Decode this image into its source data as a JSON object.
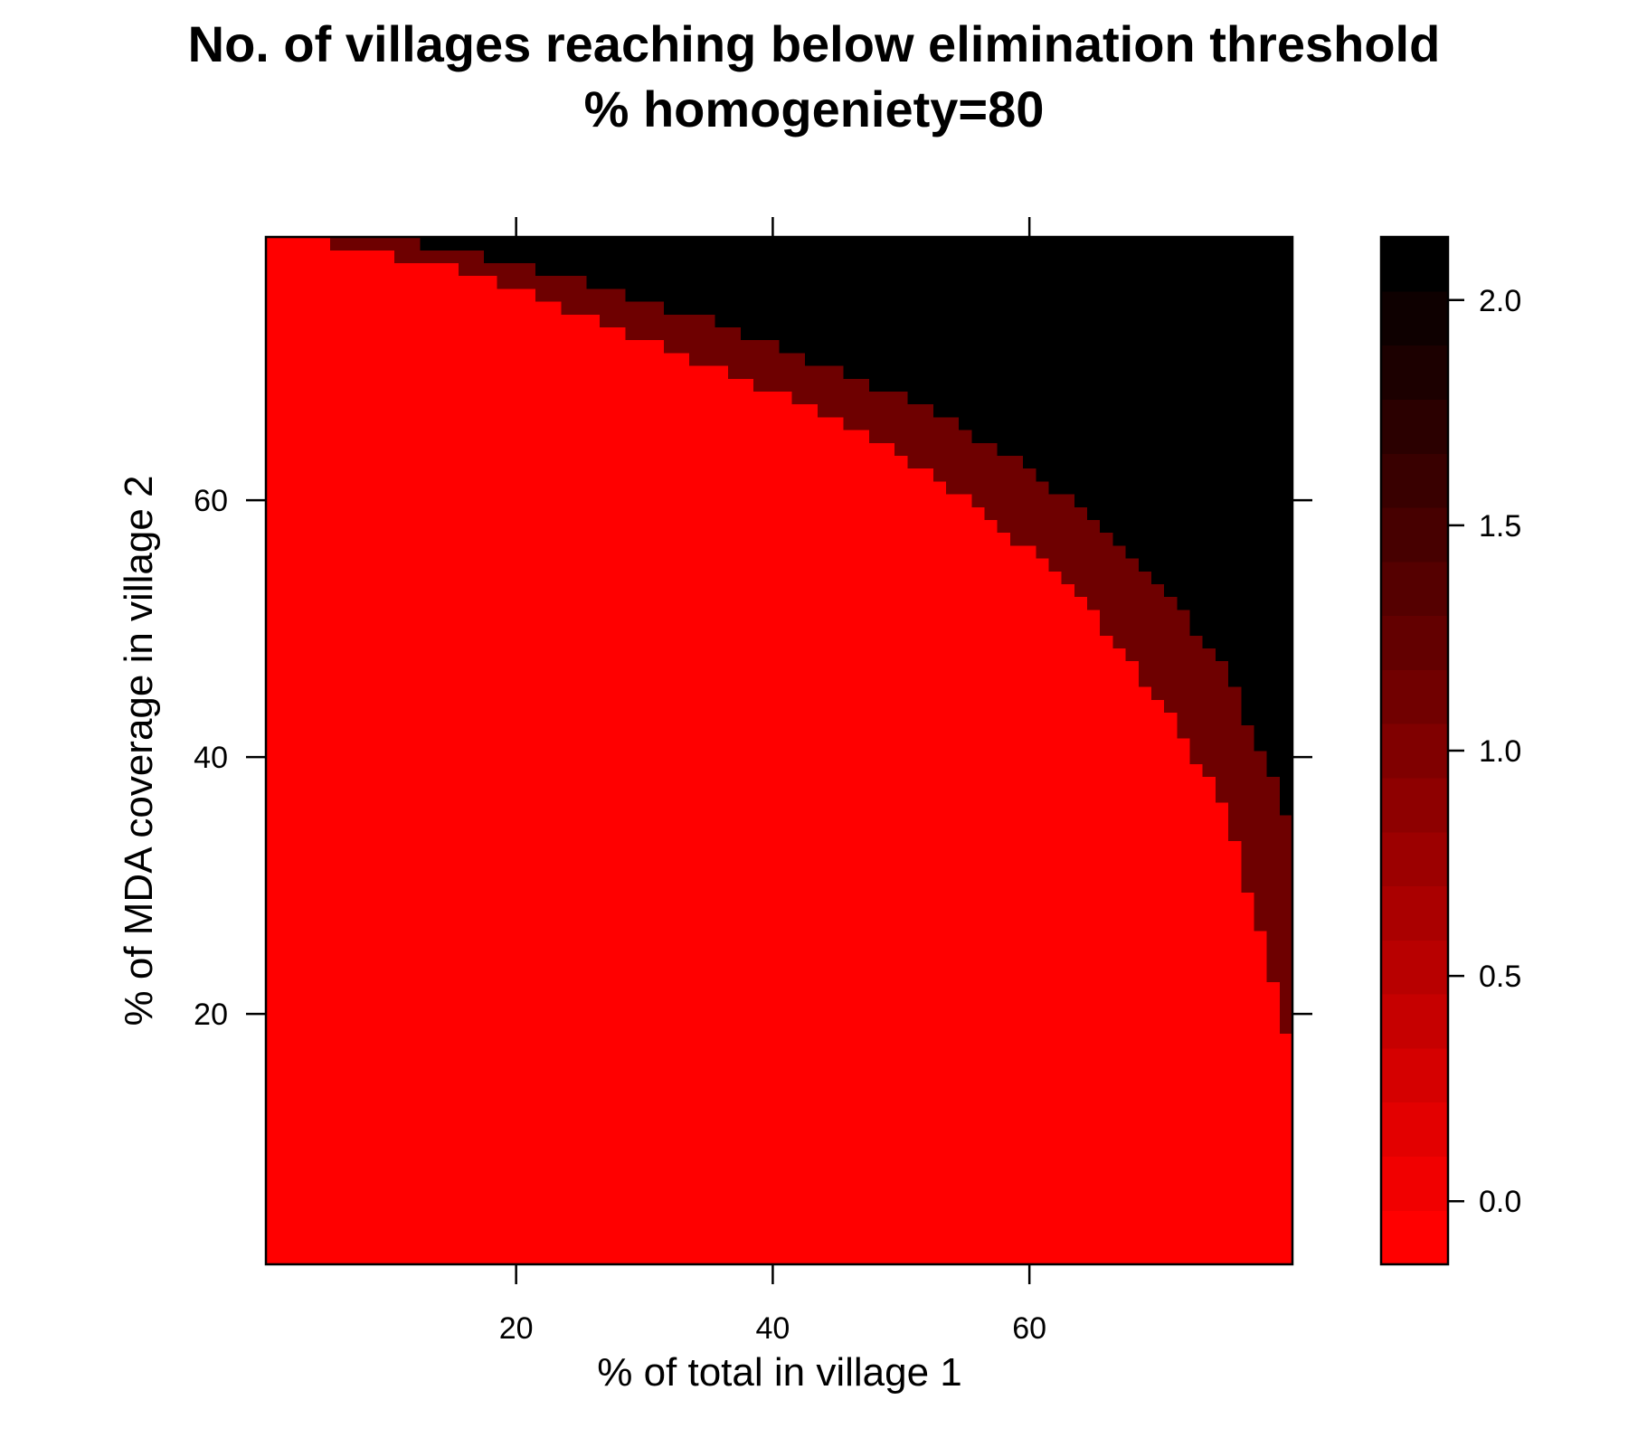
{
  "chart_data": {
    "type": "heatmap",
    "title": "No. of villages reaching below elimination threshold",
    "subtitle": "% homogeniety=80",
    "xlabel": "% of total in village 1",
    "ylabel": "% of MDA coverage in village 2",
    "x_ticks": [
      "20",
      "40",
      "60"
    ],
    "y_ticks": [
      "20",
      "40",
      "60"
    ],
    "xlim": [
      0.5,
      80.5
    ],
    "ylim": [
      0.5,
      80.5
    ],
    "grid": false,
    "levels": [
      {
        "value": 0,
        "color": "#ff0000"
      },
      {
        "value": 1,
        "color": "#6e0000"
      },
      {
        "value": 2,
        "color": "#000000"
      }
    ],
    "colorbar": {
      "ticks": [
        "0.0",
        "0.5",
        "1.0",
        "1.5",
        "2.0"
      ],
      "range": [
        -0.14,
        2.14
      ],
      "bands": 19,
      "color_low": "#ff0000",
      "color_high": "#000000"
    },
    "boundary_value_1": {
      "x": [
        1,
        5,
        10,
        15,
        20,
        25,
        30,
        35,
        40,
        45,
        50,
        55,
        60,
        65,
        70,
        72,
        75,
        78,
        80
      ],
      "y": [
        80,
        79.5,
        78.5,
        77.5,
        76,
        74,
        72,
        70,
        68,
        65.5,
        63,
        59.5,
        55.5,
        50.5,
        44,
        41,
        36,
        26,
        18
      ]
    },
    "boundary_value_2": {
      "x": [
        5,
        10,
        15,
        20,
        25,
        30,
        35,
        40,
        45,
        50,
        55,
        60,
        65,
        70,
        75,
        78,
        79,
        80
      ],
      "y": [
        80,
        80,
        79,
        78,
        76.5,
        75,
        73.5,
        71.5,
        69.5,
        67.5,
        65,
        62,
        58,
        53,
        47,
        40,
        38,
        35
      ]
    }
  }
}
